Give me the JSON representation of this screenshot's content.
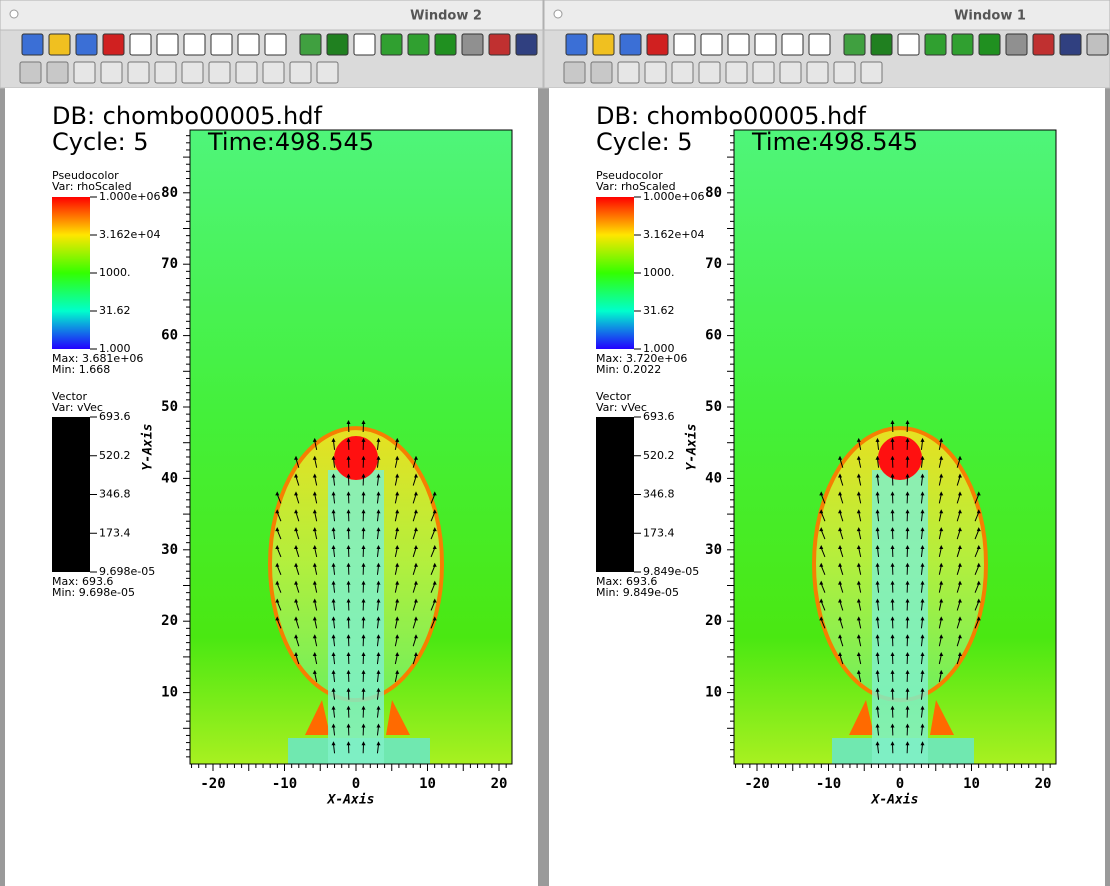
{
  "windows": [
    {
      "title": "Window 2",
      "db": "DB: chombo00005.hdf",
      "cycle": "Cycle: 5",
      "time": "Time:498.545",
      "pseudocolor": {
        "title": "Pseudocolor",
        "var": "Var: rhoScaled",
        "labels": [
          "1.000e+06",
          "3.162e+04",
          "1000.",
          "31.62",
          "1.000"
        ],
        "max": "Max:  3.681e+06",
        "min": "Min:  1.668"
      },
      "vector": {
        "title": "Vector",
        "var": "Var: vVec",
        "labels": [
          "693.6",
          "520.2",
          "346.8",
          "173.4",
          "9.698e-05"
        ],
        "max": "Max:  693.6",
        "min": "Min:  9.698e-05"
      },
      "x_axis": {
        "label": "X-Axis",
        "ticks": [
          -20,
          -10,
          0,
          10,
          20
        ]
      },
      "y_axis": {
        "label": "Y-Axis",
        "ticks": [
          10,
          20,
          30,
          40,
          50,
          60,
          70,
          80
        ]
      }
    },
    {
      "title": "Window 1",
      "db": "DB: chombo00005.hdf",
      "cycle": "Cycle: 5",
      "time": "Time:498.545",
      "pseudocolor": {
        "title": "Pseudocolor",
        "var": "Var: rhoScaled",
        "labels": [
          "1.000e+06",
          "3.162e+04",
          "1000.",
          "31.62",
          "1.000"
        ],
        "max": "Max:  3.720e+06",
        "min": "Min:  0.2022"
      },
      "vector": {
        "title": "Vector",
        "var": "Var: vVec",
        "labels": [
          "693.6",
          "520.2",
          "346.8",
          "173.4",
          "9.849e-05"
        ],
        "max": "Max:  693.6",
        "min": "Min:  9.849e-05"
      },
      "x_axis": {
        "label": "X-Axis",
        "ticks": [
          -20,
          -10,
          0,
          10,
          20
        ]
      },
      "y_axis": {
        "label": "Y-Axis",
        "ticks": [
          10,
          20,
          30,
          40,
          50,
          60,
          70,
          80
        ]
      }
    }
  ]
}
